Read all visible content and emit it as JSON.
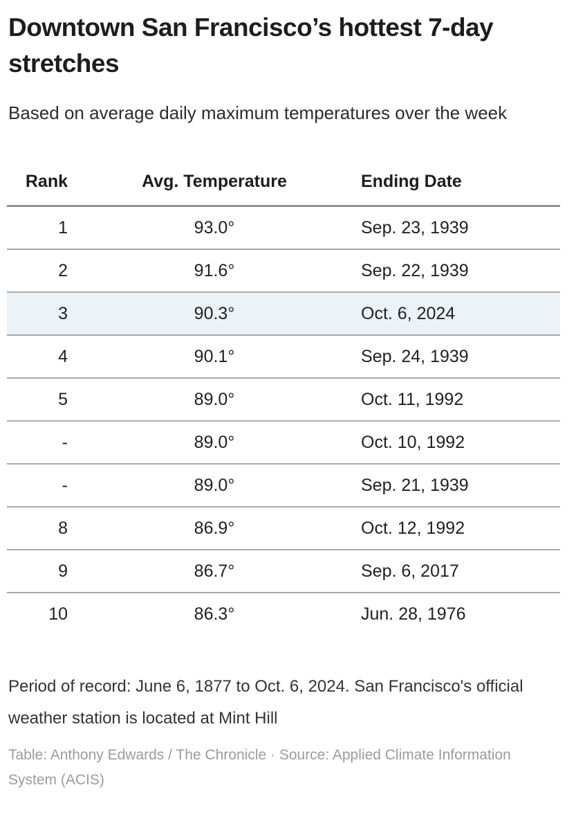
{
  "header": {
    "title": "Downtown San Francisco’s hottest 7-day stretches",
    "subtitle": "Based on average daily maximum temperatures over the week"
  },
  "table": {
    "columns": [
      {
        "key": "rank",
        "label": "Rank",
        "align": "right"
      },
      {
        "key": "temp",
        "label": "Avg. Temperature",
        "align": "center"
      },
      {
        "key": "date",
        "label": "Ending Date",
        "align": "left"
      }
    ],
    "rows": [
      {
        "rank": "1",
        "temp": "93.0°",
        "date": "Sep. 23, 1939",
        "highlight": false
      },
      {
        "rank": "2",
        "temp": "91.6°",
        "date": "Sep. 22, 1939",
        "highlight": false
      },
      {
        "rank": "3",
        "temp": "90.3°",
        "date": "Oct. 6, 2024",
        "highlight": true
      },
      {
        "rank": "4",
        "temp": "90.1°",
        "date": "Sep. 24, 1939",
        "highlight": false
      },
      {
        "rank": "5",
        "temp": "89.0°",
        "date": "Oct. 11, 1992",
        "highlight": false
      },
      {
        "rank": "-",
        "temp": "89.0°",
        "date": "Oct. 10, 1992",
        "highlight": false
      },
      {
        "rank": "-",
        "temp": "89.0°",
        "date": "Sep. 21, 1939",
        "highlight": false
      },
      {
        "rank": "8",
        "temp": "86.9°",
        "date": "Oct. 12, 1992",
        "highlight": false
      },
      {
        "rank": "9",
        "temp": "86.7°",
        "date": "Sep. 6, 2017",
        "highlight": false
      },
      {
        "rank": "10",
        "temp": "86.3°",
        "date": "Jun. 28, 1976",
        "highlight": false
      }
    ],
    "highlight_color": "#ebf3f7"
  },
  "footer": {
    "notes": "Period of record: June 6, 1877 to Oct. 6, 2024. San Francisco's official weather station is located at Mint Hill",
    "credit": "Table: Anthony Edwards / The Chronicle · Source: Applied Climate Information System (ACIS)"
  },
  "chart_data": {
    "type": "table",
    "title": "Downtown San Francisco’s hottest 7-day stretches",
    "subtitle": "Based on average daily maximum temperatures over the week",
    "columns": [
      "Rank",
      "Avg. Temperature",
      "Ending Date"
    ],
    "rows": [
      [
        "1",
        "93.0°",
        "Sep. 23, 1939"
      ],
      [
        "2",
        "91.6°",
        "Sep. 22, 1939"
      ],
      [
        "3",
        "90.3°",
        "Oct. 6, 2024"
      ],
      [
        "4",
        "90.1°",
        "Sep. 24, 1939"
      ],
      [
        "5",
        "89.0°",
        "Oct. 11, 1992"
      ],
      [
        "-",
        "89.0°",
        "Oct. 10, 1992"
      ],
      [
        "-",
        "89.0°",
        "Sep. 21, 1939"
      ],
      [
        "8",
        "86.9°",
        "Oct. 12, 1992"
      ],
      [
        "9",
        "86.7°",
        "Sep. 6, 2017"
      ],
      [
        "10",
        "86.3°",
        "Jun. 28, 1976"
      ]
    ],
    "highlighted_row_index": 2,
    "highlight_color": "#ebf3f7",
    "notes": "Period of record: June 6, 1877 to Oct. 6, 2024. San Francisco's official weather station is located at Mint Hill",
    "credit": "Table: Anthony Edwards / The Chronicle · Source: Applied Climate Information System (ACIS)"
  }
}
